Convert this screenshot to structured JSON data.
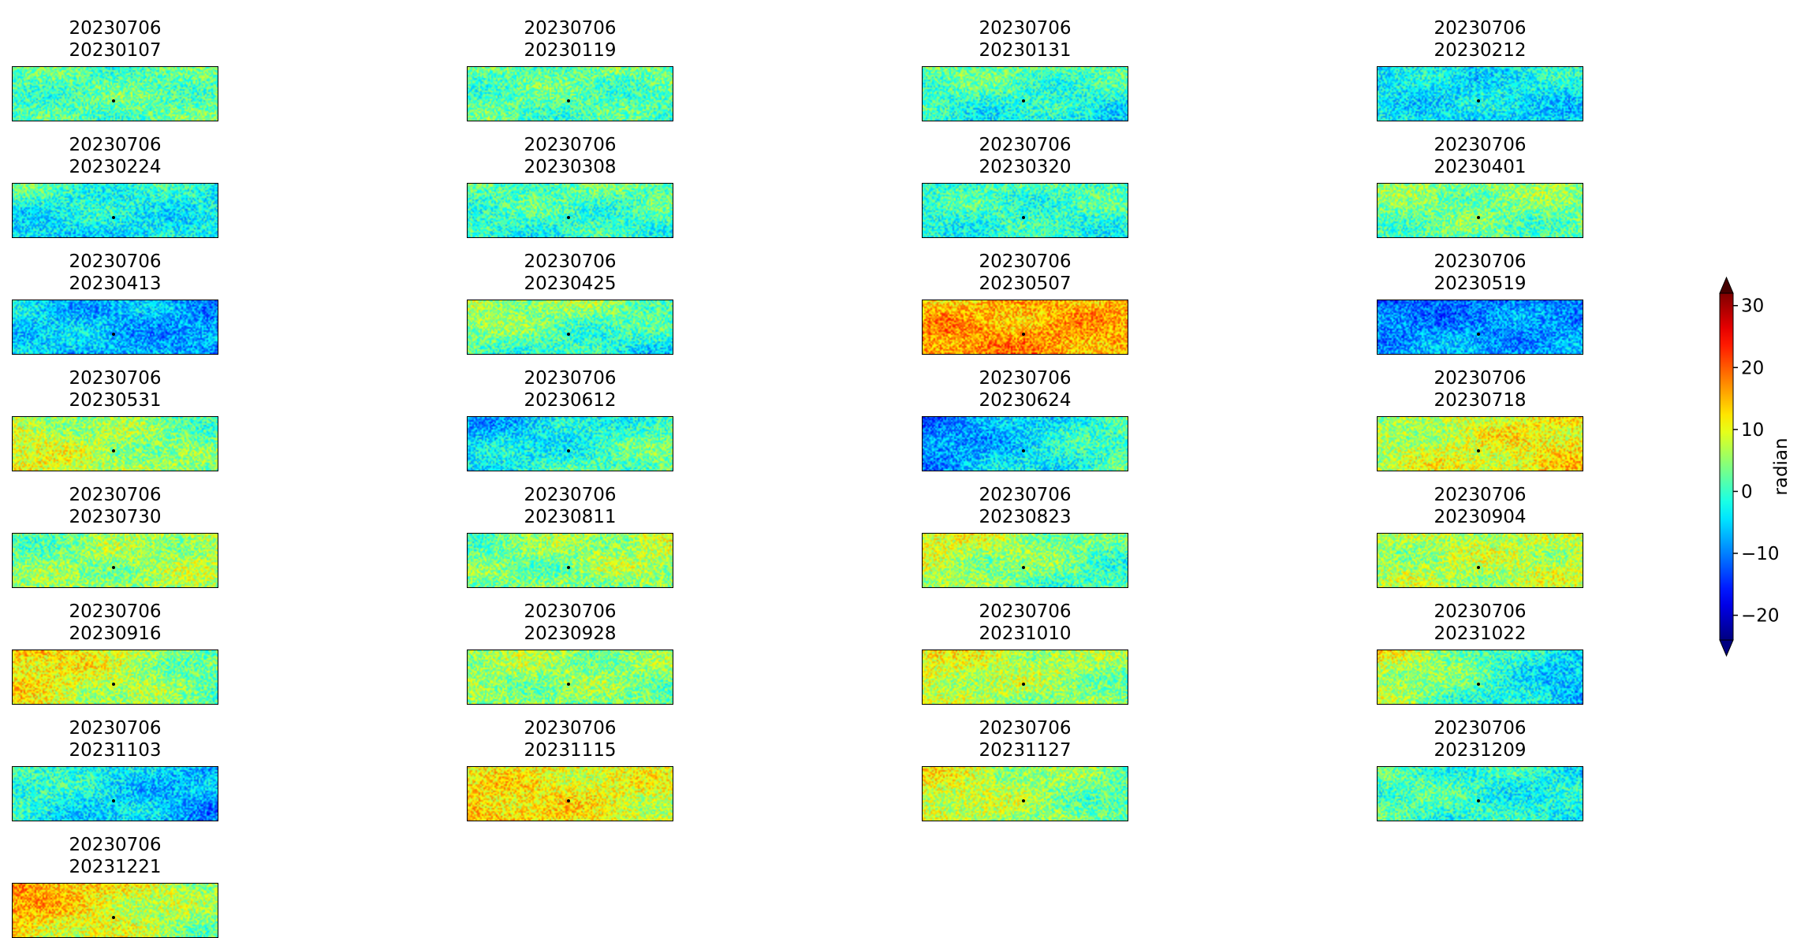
{
  "chart_data": {
    "type": "heatmap",
    "colormap": "jet",
    "colorbar": {
      "label": "radian",
      "ticks": [
        30,
        20,
        10,
        0,
        -10,
        -20
      ],
      "tick_labels": [
        "30",
        "20",
        "10",
        "0",
        "−10",
        "−20"
      ],
      "range": [
        -24,
        32
      ],
      "extend": "both",
      "placement": "right"
    },
    "panels": [
      {
        "ref": "20230706",
        "sec": "20230107",
        "trend": [
          0.0,
          0.0,
          -0.05,
          0.05
        ]
      },
      {
        "ref": "20230706",
        "sec": "20230119",
        "trend": [
          0.0,
          0.05,
          0.0,
          -0.05
        ]
      },
      {
        "ref": "20230706",
        "sec": "20230131",
        "trend": [
          0.05,
          0.0,
          -0.1,
          -0.2
        ]
      },
      {
        "ref": "20230706",
        "sec": "20230212",
        "trend": [
          -0.2,
          -0.1,
          -0.15,
          -0.25
        ]
      },
      {
        "ref": "20230706",
        "sec": "20230224",
        "trend": [
          0.0,
          -0.15,
          -0.25,
          -0.15
        ]
      },
      {
        "ref": "20230706",
        "sec": "20230308",
        "trend": [
          0.0,
          0.05,
          -0.1,
          -0.1
        ]
      },
      {
        "ref": "20230706",
        "sec": "20230320",
        "trend": [
          -0.05,
          0.0,
          -0.1,
          -0.1
        ]
      },
      {
        "ref": "20230706",
        "sec": "20230401",
        "trend": [
          0.1,
          0.1,
          0.0,
          0.0
        ]
      },
      {
        "ref": "20230706",
        "sec": "20230413",
        "trend": [
          -0.2,
          -0.35,
          -0.2,
          -0.35
        ]
      },
      {
        "ref": "20230706",
        "sec": "20230425",
        "trend": [
          0.2,
          0.05,
          0.0,
          -0.2
        ]
      },
      {
        "ref": "20230706",
        "sec": "20230507",
        "trend": [
          0.4,
          0.45,
          0.55,
          0.45
        ]
      },
      {
        "ref": "20230706",
        "sec": "20230519",
        "trend": [
          -0.45,
          -0.35,
          -0.3,
          -0.3
        ]
      },
      {
        "ref": "20230706",
        "sec": "20230531",
        "trend": [
          0.2,
          0.0,
          0.3,
          0.05
        ]
      },
      {
        "ref": "20230706",
        "sec": "20230612",
        "trend": [
          -0.35,
          0.0,
          -0.15,
          0.05
        ]
      },
      {
        "ref": "20230706",
        "sec": "20230624",
        "trend": [
          -0.45,
          0.0,
          -0.35,
          0.0
        ]
      },
      {
        "ref": "20230706",
        "sec": "20230718",
        "trend": [
          0.1,
          0.35,
          0.2,
          0.35
        ]
      },
      {
        "ref": "20230706",
        "sec": "20230730",
        "trend": [
          0.0,
          0.2,
          0.1,
          0.15
        ]
      },
      {
        "ref": "20230706",
        "sec": "20230811",
        "trend": [
          0.0,
          0.25,
          0.05,
          0.1
        ]
      },
      {
        "ref": "20230706",
        "sec": "20230823",
        "trend": [
          0.3,
          0.0,
          0.15,
          -0.1
        ]
      },
      {
        "ref": "20230706",
        "sec": "20230904",
        "trend": [
          0.15,
          0.2,
          0.15,
          0.2
        ]
      },
      {
        "ref": "20230706",
        "sec": "20230916",
        "trend": [
          0.45,
          0.0,
          0.3,
          0.0
        ]
      },
      {
        "ref": "20230706",
        "sec": "20230928",
        "trend": [
          0.15,
          0.1,
          0.1,
          0.05
        ]
      },
      {
        "ref": "20230706",
        "sec": "20231010",
        "trend": [
          0.3,
          0.1,
          0.2,
          0.05
        ]
      },
      {
        "ref": "20230706",
        "sec": "20231022",
        "trend": [
          0.3,
          -0.25,
          0.15,
          -0.3
        ]
      },
      {
        "ref": "20230706",
        "sec": "20231103",
        "trend": [
          0.0,
          -0.3,
          -0.1,
          -0.35
        ]
      },
      {
        "ref": "20230706",
        "sec": "20231115",
        "trend": [
          0.3,
          0.25,
          0.45,
          0.2
        ]
      },
      {
        "ref": "20230706",
        "sec": "20231127",
        "trend": [
          0.3,
          0.0,
          0.25,
          0.0
        ]
      },
      {
        "ref": "20230706",
        "sec": "20231209",
        "trend": [
          0.0,
          -0.15,
          0.0,
          -0.15
        ]
      },
      {
        "ref": "20230706",
        "sec": "20231221",
        "trend": [
          0.55,
          0.1,
          0.35,
          0.05
        ]
      }
    ]
  }
}
